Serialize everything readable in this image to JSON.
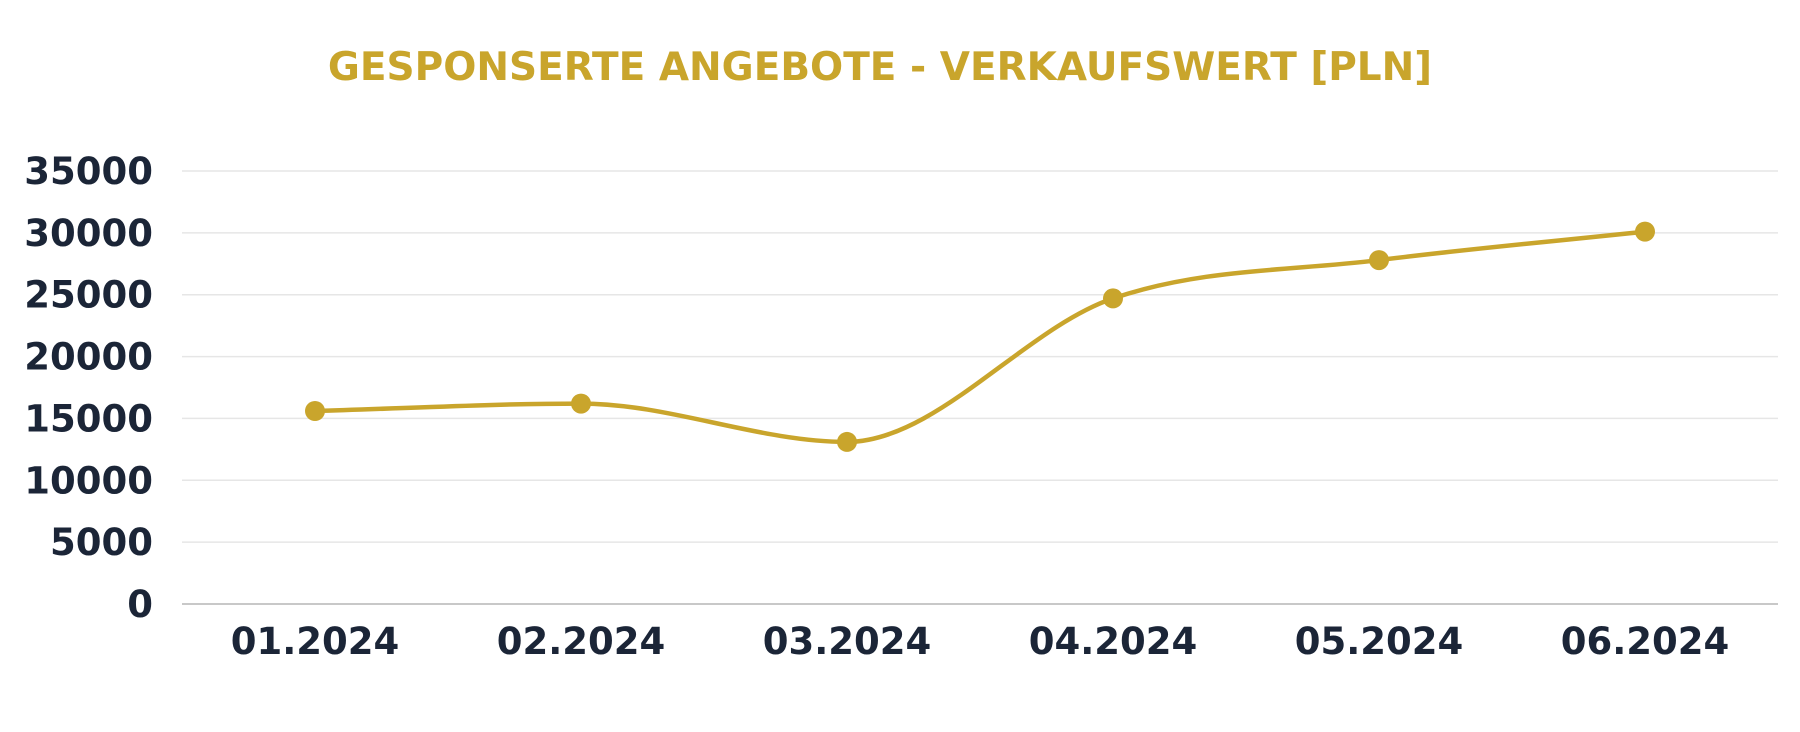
{
  "chart_data": {
    "type": "line",
    "title": "GESPONSERTE ANGEBOTE - VERKAUFSWERT [PLN]",
    "xlabel": "",
    "ylabel": "",
    "categories": [
      "01.2024",
      "02.2024",
      "03.2024",
      "04.2024",
      "05.2024",
      "06.2024"
    ],
    "series": [
      {
        "values": [
          15600,
          16200,
          13100,
          24700,
          27800,
          30100
        ]
      }
    ],
    "ylim": [
      0,
      35000
    ],
    "yticks": [
      0,
      5000,
      10000,
      15000,
      20000,
      25000,
      30000,
      35000
    ],
    "grid": true,
    "legend": "none",
    "smooth": true
  },
  "colors": {
    "series": "#c9a52c",
    "title": "#c9a52c",
    "tick_labels": "#1b2537",
    "grid": "#e6e6e6",
    "axis": "#c8c8c8"
  }
}
